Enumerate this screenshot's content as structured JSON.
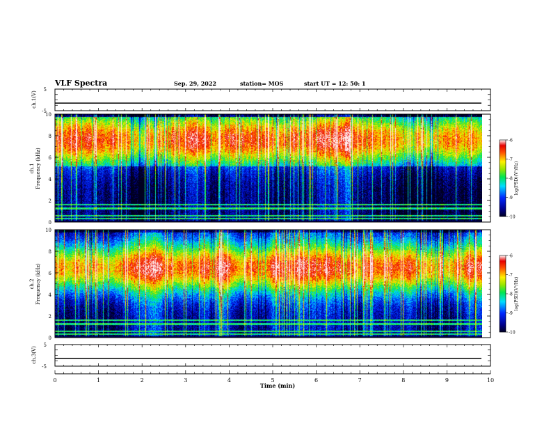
{
  "header": {
    "title": "VLF Spectra",
    "date": "Sep. 29, 2022",
    "station": "station= MOS",
    "start_ut": "start  UT =   12: 50: 1"
  },
  "chart_data": [
    {
      "type": "line",
      "ylabel": "ch.1(V)",
      "ylim": [
        -5,
        5
      ],
      "yticks": [
        "5",
        "-5"
      ],
      "xlim": [
        0,
        10
      ],
      "series": [
        {
          "values": [
            -1.5
          ]
        }
      ]
    },
    {
      "type": "heatmap",
      "ylabel": "ch.1\nFrequency (kHz)",
      "ylabel_lines": [
        "ch.1",
        "Frequency (kHz)"
      ],
      "ylim": [
        0,
        10
      ],
      "yticks": [
        "0",
        "2",
        "4",
        "6",
        "8",
        "10"
      ],
      "xlim": [
        0,
        9.85
      ],
      "colorbar": {
        "label": "log(PSD)(V²/Hz)",
        "range": [
          -10,
          -6
        ],
        "ticks": [
          "-6",
          "-7",
          "-8",
          "-9",
          "-10"
        ]
      },
      "bands_kHz": [
        [
          0.3,
          0.45
        ],
        [
          0.55,
          0.65
        ],
        [
          1.2,
          1.4
        ],
        [
          1.6,
          1.7
        ]
      ],
      "peak_band_kHz": [
        6,
        9.3
      ]
    },
    {
      "type": "heatmap",
      "ylabel": "ch.2\nFrequency (kHz)",
      "ylabel_lines": [
        "ch.2",
        "Frequency (kHz)"
      ],
      "ylim": [
        0,
        10
      ],
      "yticks": [
        "0",
        "2",
        "4",
        "6",
        "8",
        "10"
      ],
      "xlim": [
        0,
        9.85
      ],
      "colorbar": {
        "label": "log(PSD)(V²/Hz)",
        "range": [
          -10,
          -6
        ],
        "ticks": [
          "-6",
          "-7",
          "-8",
          "-9",
          "-10"
        ]
      },
      "bands_kHz": [
        [
          0.3,
          0.45
        ],
        [
          0.55,
          0.65
        ],
        [
          1.2,
          1.4
        ],
        [
          1.6,
          1.7
        ]
      ],
      "peak_band_kHz": [
        5,
        8
      ]
    },
    {
      "type": "line",
      "ylabel": "ch.3(V)",
      "ylim": [
        -5,
        5
      ],
      "yticks": [
        "5",
        "-5"
      ],
      "xlim": [
        0,
        10
      ],
      "xlabel": "Time (min)",
      "xticks": [
        "0",
        "1",
        "2",
        "3",
        "4",
        "5",
        "6",
        "7",
        "8",
        "9",
        "10"
      ],
      "series": [
        {
          "values": [
            -1.5
          ]
        }
      ]
    }
  ]
}
